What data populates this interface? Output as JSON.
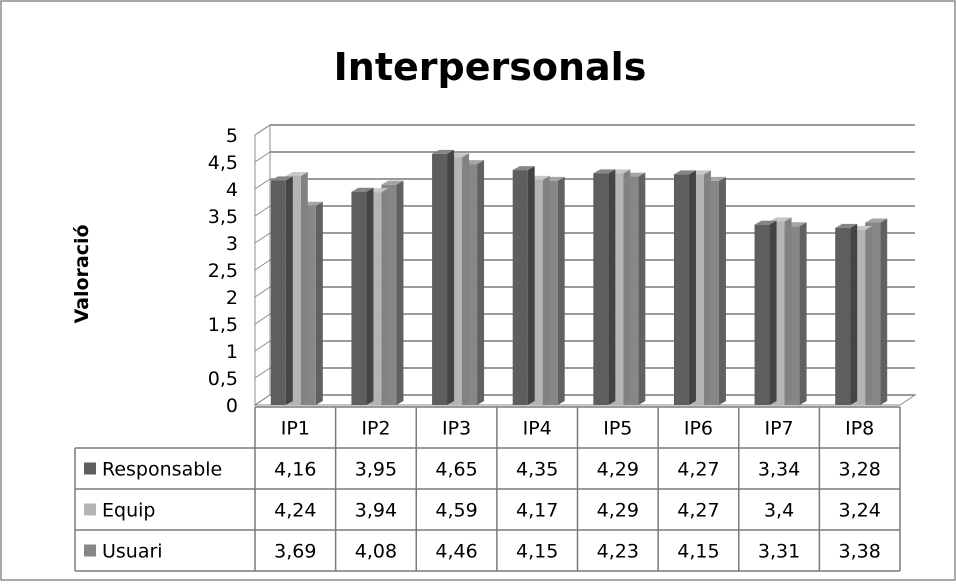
{
  "chart_data": {
    "type": "bar",
    "title": "Interpersonals",
    "ylabel": "Valoració",
    "xlabel": "",
    "ylim": [
      0,
      5
    ],
    "yticks": [
      "0",
      "0,5",
      "1",
      "1,5",
      "2",
      "2,5",
      "3",
      "3,5",
      "4",
      "4,5",
      "5"
    ],
    "categories": [
      "IP1",
      "IP2",
      "IP3",
      "IP4",
      "IP5",
      "IP6",
      "IP7",
      "IP8"
    ],
    "grid": true,
    "legend": "data-table",
    "series": [
      {
        "name": "Responsable",
        "color": "#5e5e5e",
        "values": [
          4.16,
          3.95,
          4.65,
          4.35,
          4.29,
          4.27,
          3.34,
          3.28
        ],
        "labels": [
          "4,16",
          "3,95",
          "4,65",
          "4,35",
          "4,29",
          "4,27",
          "3,34",
          "3,28"
        ]
      },
      {
        "name": "Equip",
        "color": "#b4b4b4",
        "values": [
          4.24,
          3.94,
          4.59,
          4.17,
          4.29,
          4.27,
          3.4,
          3.24
        ],
        "labels": [
          "4,24",
          "3,94",
          "4,59",
          "4,17",
          "4,29",
          "4,27",
          "3,4",
          "3,24"
        ]
      },
      {
        "name": "Usuari",
        "color": "#878787",
        "values": [
          3.69,
          4.08,
          4.46,
          4.15,
          4.23,
          4.15,
          3.31,
          3.38
        ],
        "labels": [
          "3,69",
          "4,08",
          "4,46",
          "4,15",
          "4,23",
          "4,15",
          "3,31",
          "3,38"
        ]
      }
    ]
  }
}
